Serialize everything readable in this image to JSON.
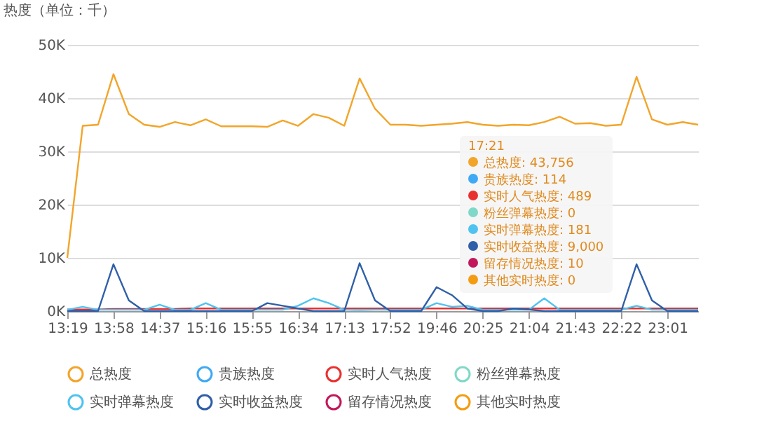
{
  "chart_data": {
    "type": "line",
    "ylabel": "热度（单位：千）",
    "categories": [
      "13:19",
      null,
      null,
      "13:58",
      null,
      null,
      "14:37",
      null,
      null,
      "15:16",
      null,
      null,
      "15:55",
      null,
      null,
      "16:34",
      null,
      null,
      "17:13",
      null,
      null,
      "17:52",
      null,
      null,
      "19:46",
      null,
      null,
      "20:25",
      null,
      null,
      "21:04",
      null,
      null,
      "21:43",
      null,
      null,
      "22:22",
      null,
      null,
      "23:01",
      null,
      null
    ],
    "series": [
      {
        "name": "总热度",
        "color": "#f2a52a",
        "values": [
          10,
          34.8,
          35,
          44.5,
          37,
          35,
          34.6,
          35.5,
          34.9,
          36,
          34.7,
          34.7,
          34.7,
          34.6,
          35.8,
          34.8,
          37,
          36.3,
          34.8,
          43.7,
          38,
          35,
          35,
          34.8,
          35,
          35.2,
          35.5,
          35,
          34.8,
          35,
          34.9,
          35.5,
          36.5,
          35.2,
          35.3,
          34.8,
          35,
          44,
          36,
          35,
          35.5,
          35
        ]
      },
      {
        "name": "贵族热度",
        "color": "#3fa9f5",
        "values": [
          null,
          null,
          null,
          null,
          null,
          null,
          null,
          null,
          null,
          null,
          null,
          null,
          null,
          null,
          null,
          null,
          null,
          null,
          null,
          null,
          null,
          null,
          null,
          null,
          null,
          null,
          null,
          null,
          null,
          null,
          null,
          null,
          null,
          null,
          null,
          null,
          null,
          null,
          null,
          null,
          null,
          null
        ]
      },
      {
        "name": "实时人气热度",
        "color": "#e8312f",
        "values": [
          0.3,
          0.3,
          0.3,
          0.4,
          0.4,
          0.4,
          0.4,
          0.4,
          0.5,
          0.5,
          0.5,
          0.5,
          0.5,
          0.5,
          0.5,
          0.5,
          0.5,
          0.5,
          0.5,
          0.5,
          0.5,
          0.5,
          0.5,
          0.5,
          0.5,
          0.5,
          0.5,
          0.5,
          0.5,
          0.5,
          0.5,
          0.5,
          0.5,
          0.5,
          0.5,
          0.5,
          0.5,
          0.5,
          0.5,
          0.5,
          0.5,
          0.5
        ]
      },
      {
        "name": "粉丝弹幕热度",
        "color": "#7fd8c8",
        "values": [
          null,
          null,
          null,
          null,
          null,
          null,
          null,
          null,
          null,
          null,
          null,
          null,
          null,
          null,
          null,
          null,
          null,
          null,
          null,
          null,
          null,
          null,
          null,
          null,
          null,
          null,
          null,
          null,
          null,
          null,
          null,
          null,
          null,
          null,
          null,
          null,
          null,
          null,
          null,
          null,
          null,
          null
        ]
      },
      {
        "name": "实时弹幕热度",
        "color": "#4fc3f0",
        "values": [
          0.25,
          0.8,
          0.25,
          0.25,
          0.25,
          0.25,
          1.2,
          0.25,
          0.25,
          1.5,
          0.25,
          0.25,
          0.25,
          0.25,
          0.25,
          1,
          2.4,
          1.5,
          0.25,
          0.2,
          0.25,
          0.25,
          0.25,
          0.25,
          1.5,
          0.8,
          1,
          0.25,
          0.25,
          0.25,
          0.25,
          2.4,
          0.25,
          0.25,
          0.25,
          0.25,
          0.25,
          1,
          0.25,
          0.25,
          0.25,
          0.25
        ]
      },
      {
        "name": "实时收益热度",
        "color": "#2f5fa8",
        "values": [
          0,
          0,
          0,
          8.8,
          2,
          0,
          0,
          0,
          0,
          0,
          0,
          0,
          0,
          1.5,
          1,
          0.5,
          0,
          0,
          0,
          9,
          2,
          0,
          0,
          0,
          4.5,
          3,
          0.5,
          0,
          0,
          0.5,
          0.3,
          0,
          0,
          0,
          0,
          0,
          0,
          8.8,
          2,
          0,
          0,
          0
        ]
      },
      {
        "name": "留存情况热度",
        "color": "#c2185b",
        "values": [
          null,
          null,
          null,
          null,
          null,
          null,
          null,
          null,
          null,
          null,
          null,
          null,
          null,
          null,
          null,
          null,
          null,
          null,
          null,
          null,
          null,
          null,
          null,
          null,
          null,
          null,
          null,
          null,
          null,
          null,
          null,
          null,
          null,
          null,
          null,
          null,
          null,
          null,
          null,
          null,
          null,
          null
        ]
      },
      {
        "name": "其他实时热度",
        "color": "#f39c12",
        "values": [
          null,
          null,
          null,
          null,
          null,
          null,
          null,
          null,
          null,
          null,
          null,
          null,
          null,
          null,
          null,
          null,
          null,
          null,
          null,
          null,
          null,
          null,
          null,
          null,
          null,
          null,
          null,
          null,
          null,
          null,
          null,
          null,
          null,
          null,
          null,
          null,
          null,
          null,
          null,
          null,
          null,
          null
        ]
      }
    ],
    "ylim": [
      0,
      50
    ],
    "yticks": [
      {
        "value": 0,
        "label": "0K"
      },
      {
        "value": 10,
        "label": "10K"
      },
      {
        "value": 20,
        "label": "20K"
      },
      {
        "value": 30,
        "label": "30K"
      },
      {
        "value": 40,
        "label": "40K"
      },
      {
        "value": 50,
        "label": "50K"
      }
    ],
    "grid": "y",
    "legend": "bottom",
    "line_style": "solid",
    "annotations": [
      "17:21",
      "总热度: 43,756",
      "贵族热度: 114",
      "实时人气热度: 489",
      "粉丝弹幕热度: 0",
      "实时弹幕热度: 181",
      "实时收益热度: 9,000",
      "留存情况热度: 10",
      "其他实时热度: 0"
    ]
  }
}
